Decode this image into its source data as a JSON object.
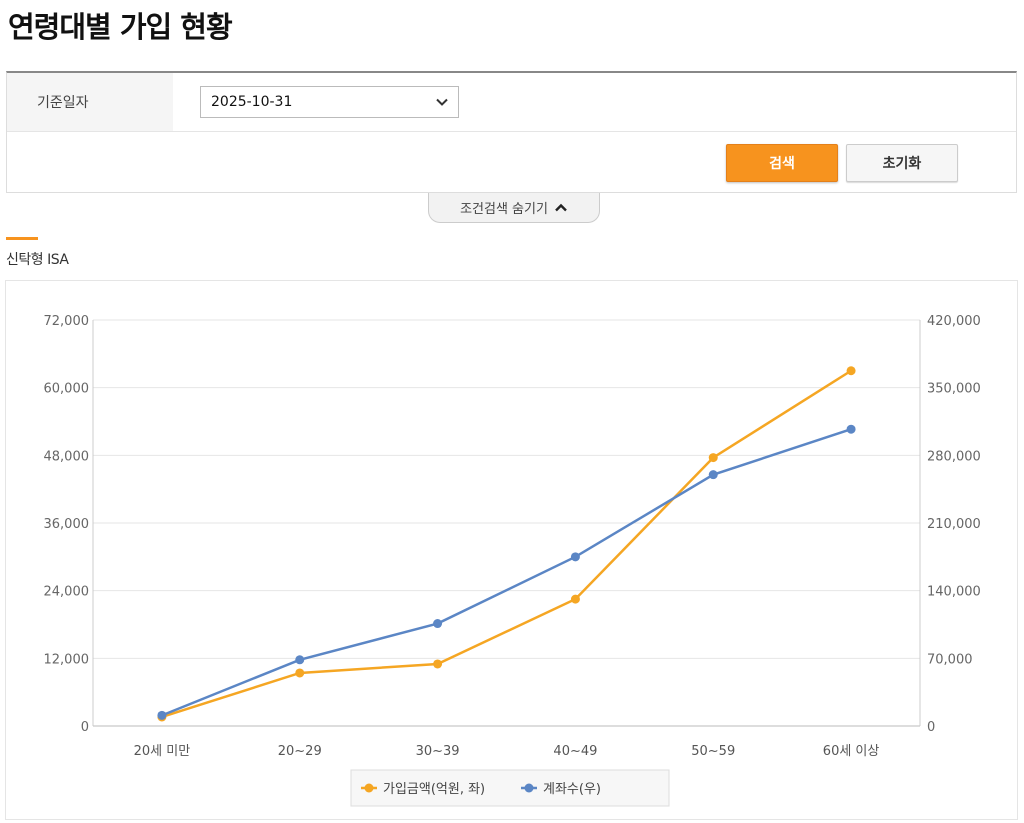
{
  "page": {
    "title": "연령대별 가입 현황"
  },
  "search": {
    "date_label": "기준일자",
    "date_value": "2025-10-31",
    "search_button": "검색",
    "reset_button": "초기화",
    "toggle_label": "조건검색 숨기기"
  },
  "section": {
    "title": "신탁형 ISA"
  },
  "colors": {
    "accent": "#f7931e",
    "series_amount": "#f5a623",
    "series_accounts": "#5b86c5"
  },
  "chart_data": {
    "type": "line",
    "categories": [
      "20세 미만",
      "20~29",
      "30~39",
      "40~49",
      "50~59",
      "60세 이상"
    ],
    "series": [
      {
        "name": "가입금액(억원, 좌)",
        "axis": "left",
        "color": "#f5a623",
        "values": [
          1600,
          9400,
          11000,
          22500,
          47600,
          63000
        ]
      },
      {
        "name": "계좌수(우)",
        "axis": "right",
        "color": "#5b86c5",
        "values": [
          11000,
          68500,
          106000,
          175000,
          260000,
          307000
        ]
      }
    ],
    "y_left": {
      "min": 0,
      "max": 72000,
      "ticks": [
        "0",
        "12,000",
        "24,000",
        "36,000",
        "48,000",
        "60,000",
        "72,000"
      ]
    },
    "y_right": {
      "min": 0,
      "max": 420000,
      "ticks": [
        "0",
        "70,000",
        "140,000",
        "210,000",
        "280,000",
        "350,000",
        "420,000"
      ]
    },
    "grid": true,
    "legend_position": "bottom"
  }
}
